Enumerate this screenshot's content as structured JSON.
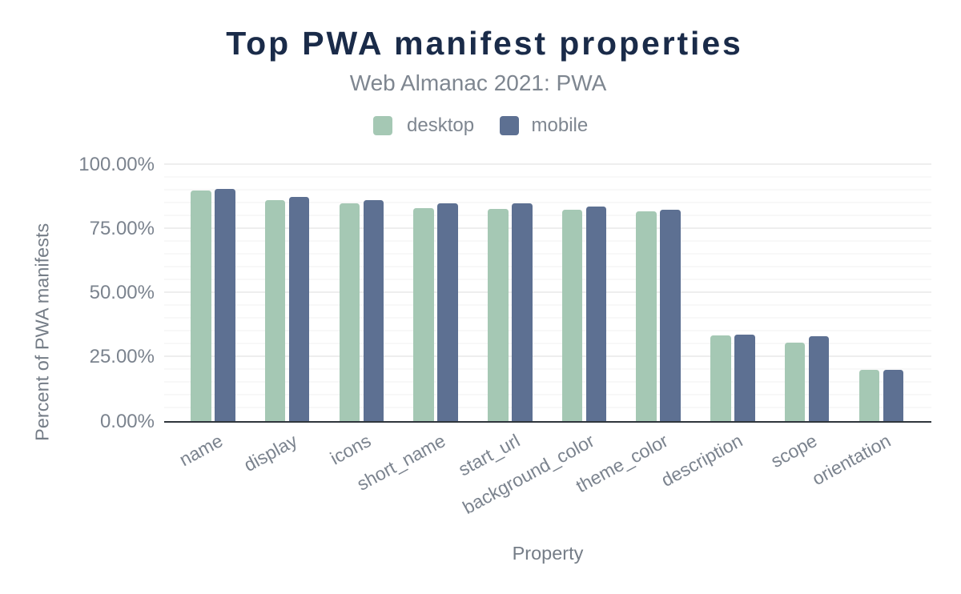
{
  "chart_data": {
    "type": "bar",
    "title": "Top PWA manifest properties",
    "subtitle": "Web Almanac 2021: PWA",
    "xlabel": "Property",
    "ylabel": "Percent of PWA manifests",
    "categories": [
      "name",
      "display",
      "icons",
      "short_name",
      "start_url",
      "background_color",
      "theme_color",
      "description",
      "scope",
      "orientation"
    ],
    "series": [
      {
        "name": "desktop",
        "color": "#a5c8b4",
        "values": [
          89.5,
          85.7,
          84.5,
          82.6,
          82.4,
          82.0,
          81.5,
          33.3,
          30.3,
          19.8
        ]
      },
      {
        "name": "mobile",
        "color": "#5d7092",
        "values": [
          90.2,
          87.0,
          85.8,
          84.6,
          84.6,
          83.3,
          82.1,
          33.5,
          32.9,
          19.9
        ]
      }
    ],
    "ylim": [
      0,
      100
    ],
    "y_tick_values": [
      0,
      25,
      50,
      75,
      100
    ],
    "y_tick_labels": [
      "0.00%",
      "25.00%",
      "50.00%",
      "75.00%",
      "100.00%"
    ],
    "grid": {
      "major_step": 25,
      "minor_step": 5,
      "visible": true
    },
    "legend_position": "top"
  },
  "colors": {
    "title": "#1a2b49",
    "text_gray": "#7b838e",
    "axis_line": "#2f353c",
    "gridline_major": "#eeeeee",
    "gridline_minor": "#f8f8f8",
    "background": "#ffffff",
    "desktop_series": "#a5c8b4",
    "mobile_series": "#5d7092"
  }
}
